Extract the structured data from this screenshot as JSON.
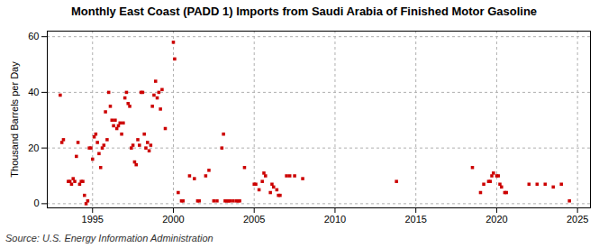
{
  "chart_data": {
    "type": "scatter",
    "title": "Monthly East Coast (PADD 1) Imports from Saudi Arabia of Finished Motor Gasoline",
    "ylabel": "Thousand Barrels per Day",
    "source": "Source: U.S. Energy Information Administration",
    "color": "#cc0000",
    "marker": "square",
    "grid": true,
    "xlim": [
      1992.2,
      2025.8
    ],
    "ylim": [
      -1.5,
      62
    ],
    "xticks": [
      1995,
      2000,
      2005,
      2010,
      2015,
      2020,
      2025
    ],
    "yticks": [
      0,
      20,
      40,
      60
    ],
    "x": [
      1993.0,
      1993.1,
      1993.2,
      1993.5,
      1993.6,
      1993.7,
      1993.8,
      1993.9,
      1994.0,
      1994.1,
      1994.2,
      1994.3,
      1994.4,
      1994.5,
      1994.6,
      1994.7,
      1994.8,
      1994.9,
      1995.0,
      1995.1,
      1995.2,
      1995.3,
      1995.4,
      1995.5,
      1995.6,
      1995.7,
      1995.8,
      1995.9,
      1996.0,
      1996.1,
      1996.2,
      1996.3,
      1996.4,
      1996.5,
      1996.6,
      1996.7,
      1996.8,
      1996.9,
      1997.0,
      1997.1,
      1997.2,
      1997.3,
      1997.4,
      1997.5,
      1997.6,
      1997.7,
      1997.8,
      1997.9,
      1998.0,
      1998.1,
      1998.2,
      1998.3,
      1998.4,
      1998.5,
      1998.6,
      1998.7,
      1998.8,
      1998.9,
      1999.0,
      1999.1,
      1999.2,
      1999.3,
      1999.5,
      2000.0,
      2000.08,
      2000.3,
      2000.5,
      2000.6,
      2001.0,
      2001.3,
      2001.5,
      2001.6,
      2002.0,
      2002.2,
      2002.5,
      2002.7,
      2003.0,
      2003.1,
      2003.2,
      2003.3,
      2003.4,
      2003.5,
      2003.7,
      2003.9,
      2004.0,
      2004.1,
      2004.4,
      2005.0,
      2005.1,
      2005.3,
      2005.5,
      2005.6,
      2005.7,
      2006.0,
      2006.1,
      2006.2,
      2006.4,
      2006.5,
      2006.6,
      2007.0,
      2007.2,
      2007.5,
      2008.0,
      2013.8,
      2018.5,
      2019.0,
      2019.2,
      2019.5,
      2019.6,
      2019.7,
      2019.8,
      2020.0,
      2020.1,
      2020.2,
      2020.3,
      2020.5,
      2020.6,
      2022.0,
      2022.5,
      2023.0,
      2023.5,
      2024.0,
      2024.5
    ],
    "values": [
      39,
      22,
      23,
      8,
      8,
      7,
      9,
      8,
      17,
      22,
      7,
      8,
      8,
      3,
      0,
      1,
      20,
      20,
      16,
      24,
      25,
      22,
      18,
      13,
      20,
      21,
      33,
      23,
      40,
      35,
      30,
      28,
      30,
      27,
      28,
      29,
      25,
      29,
      38,
      40,
      36,
      35,
      20,
      21,
      15,
      14,
      23,
      21,
      40,
      40,
      25,
      20,
      22,
      19,
      21,
      35,
      39,
      44,
      38,
      40,
      34,
      41,
      27,
      58,
      52,
      4,
      1,
      1,
      10,
      9,
      1,
      1,
      10,
      12,
      1,
      1,
      20,
      25,
      1,
      1,
      1,
      1,
      1,
      1,
      1,
      1,
      13,
      7,
      7,
      5,
      8,
      11,
      10,
      4,
      7,
      6,
      5,
      3,
      3,
      10,
      10,
      10,
      9,
      8,
      13,
      4,
      7,
      8,
      8,
      10,
      11,
      10,
      10,
      7,
      6,
      4,
      4,
      7,
      7,
      7,
      6,
      7,
      1
    ]
  }
}
